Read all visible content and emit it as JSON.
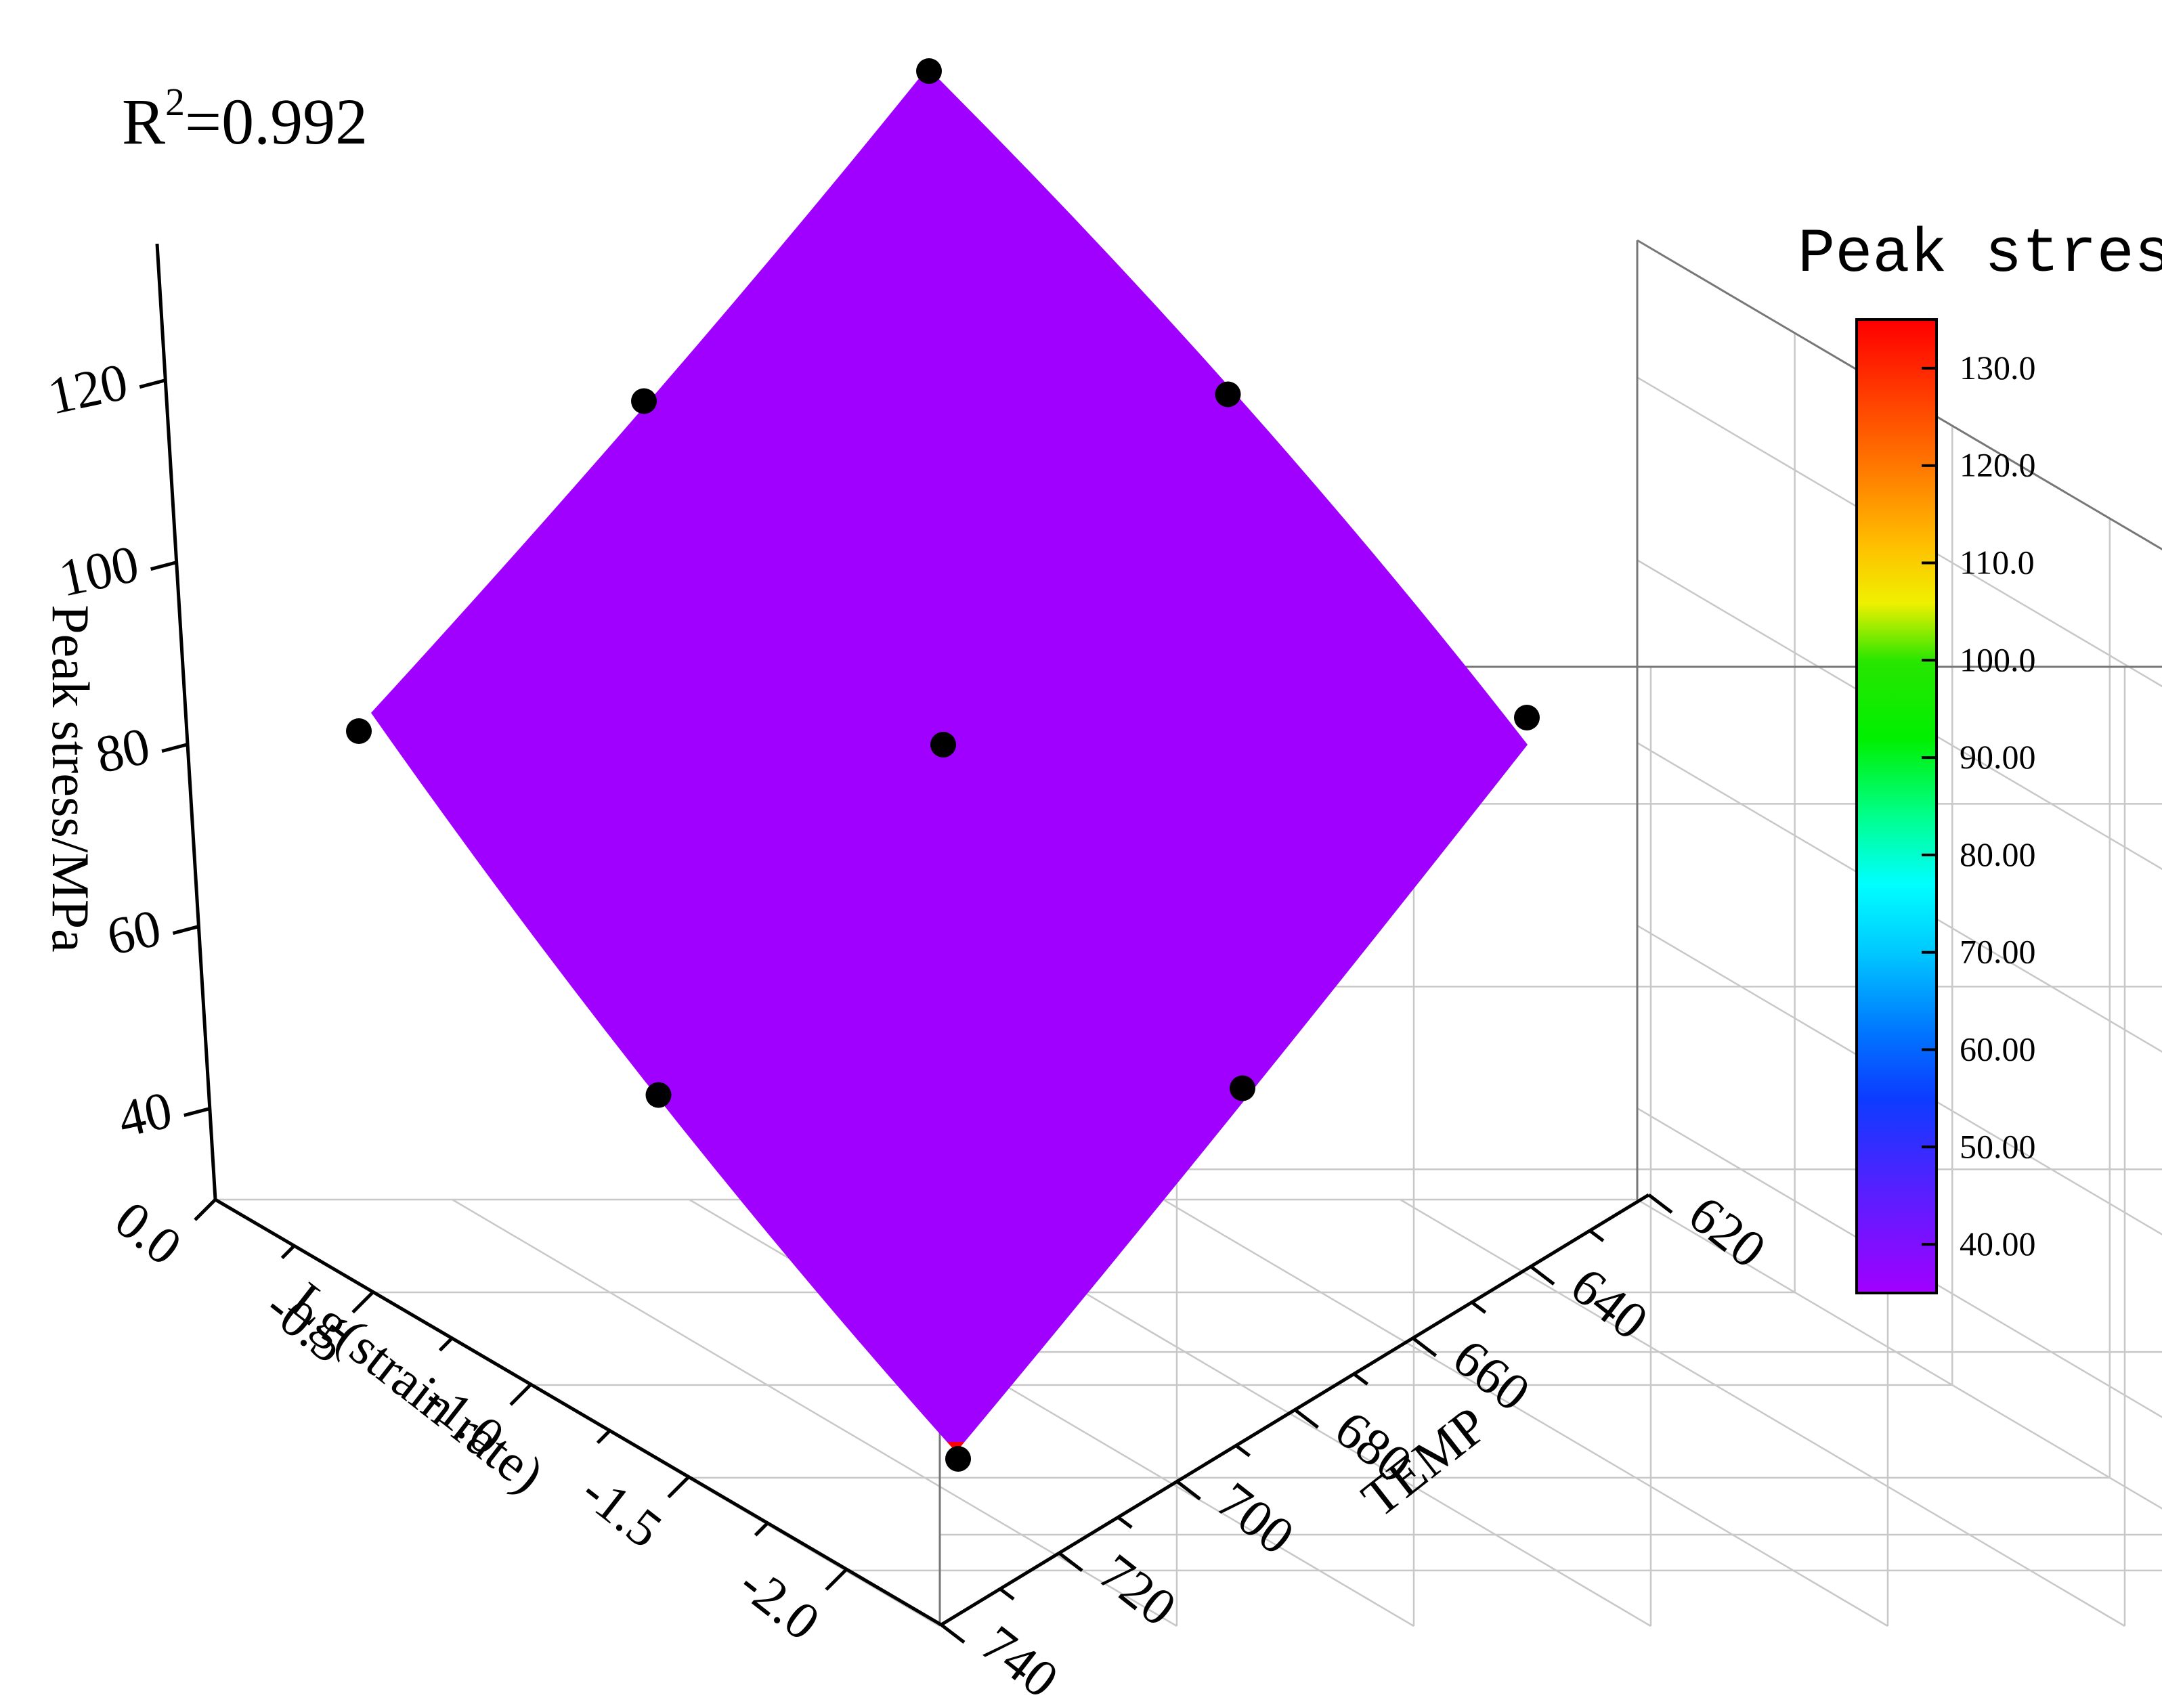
{
  "chart_data": {
    "type": "surface",
    "annotation": {
      "base": "R",
      "sup": "2",
      "rest": "=0.992"
    },
    "zlabel": "Peak stress/MPa",
    "xlabel": "Lg(strain rate)",
    "ylabel": "TEMP",
    "z_ticks": [
      "40",
      "60",
      "80",
      "100",
      "120"
    ],
    "x_ticks": [
      "0.0",
      "-0.5",
      "-1.0",
      "-1.5",
      "-2.0"
    ],
    "y_ticks": [
      "620",
      "640",
      "660",
      "680",
      "700",
      "720",
      "740"
    ],
    "zlim": [
      30,
      135
    ],
    "xlim": [
      0.0,
      -2.3
    ],
    "ylim": [
      620,
      740
    ],
    "grid": true,
    "colorbar": {
      "title": "Peak stress",
      "ticks": [
        "130.0",
        "120.0",
        "110.0",
        "100.0",
        "90.00",
        "80.00",
        "70.00",
        "60.00",
        "50.00",
        "40.00"
      ],
      "range": [
        35,
        135
      ],
      "stops": [
        {
          "v": 35,
          "c": "#a000ff"
        },
        {
          "v": 45,
          "c": "#5a1eff"
        },
        {
          "v": 55,
          "c": "#0c3cff"
        },
        {
          "v": 62,
          "c": "#0078ff"
        },
        {
          "v": 70,
          "c": "#00c8ff"
        },
        {
          "v": 77,
          "c": "#00ffff"
        },
        {
          "v": 84,
          "c": "#00ff8c"
        },
        {
          "v": 92,
          "c": "#00f000"
        },
        {
          "v": 100,
          "c": "#28e600"
        },
        {
          "v": 106,
          "c": "#f0f000"
        },
        {
          "v": 112,
          "c": "#ffbe00"
        },
        {
          "v": 120,
          "c": "#ff7800"
        },
        {
          "v": 135,
          "c": "#ff0000"
        }
      ]
    },
    "points": [
      {
        "lg_strain_rate": 0.0,
        "temp": 620,
        "peak_stress": 133
      },
      {
        "lg_strain_rate": 0.0,
        "temp": 680,
        "peak_stress": 84
      },
      {
        "lg_strain_rate": 0.0,
        "temp": 740,
        "peak_stress": 47
      },
      {
        "lg_strain_rate": -1.0,
        "temp": 620,
        "peak_stress": 118
      },
      {
        "lg_strain_rate": -1.0,
        "temp": 680,
        "peak_stress": 77
      },
      {
        "lg_strain_rate": -1.0,
        "temp": 740,
        "peak_stress": 43
      },
      {
        "lg_strain_rate": -2.0,
        "temp": 620,
        "peak_stress": 112
      },
      {
        "lg_strain_rate": -2.0,
        "temp": 680,
        "peak_stress": 79
      },
      {
        "lg_strain_rate": -2.0,
        "temp": 740,
        "peak_stress": 33
      }
    ],
    "surface_corners": {
      "x0_y620": 131,
      "x0_y740": 86,
      "xm2_y620": 85,
      "xm2_y740": 35
    }
  }
}
